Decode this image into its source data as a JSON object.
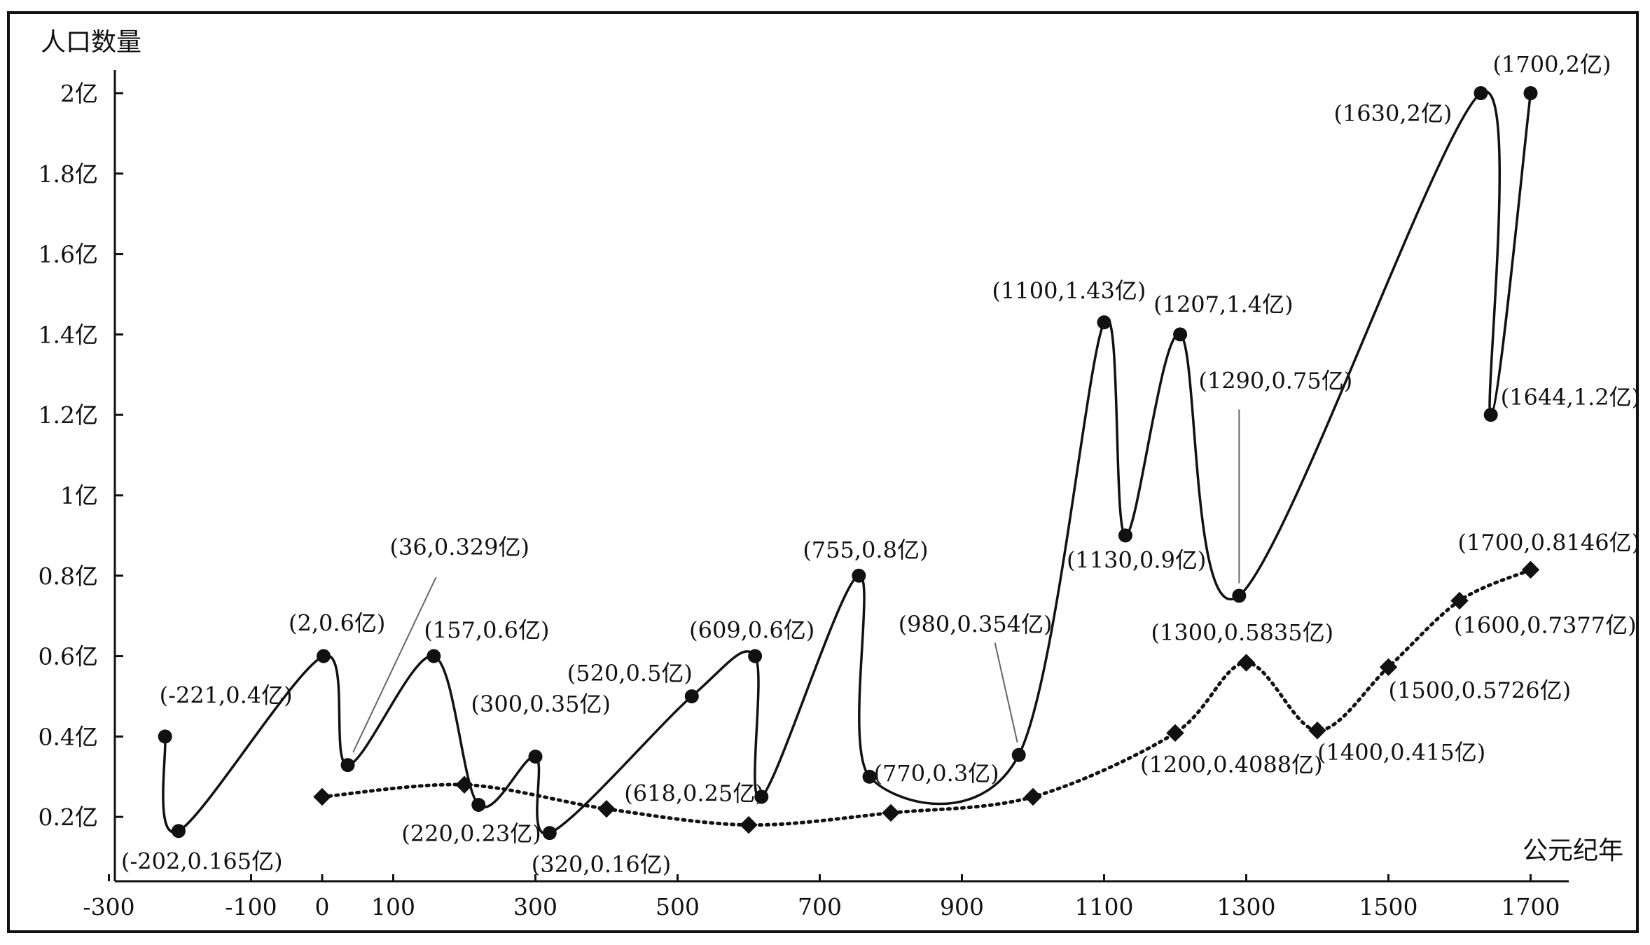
{
  "chart_data": {
    "type": "line",
    "ylabel": "人口数量",
    "xlabel": "公元纪年",
    "xlim": [
      -300,
      1800
    ],
    "ylim": [
      0.04,
      2.0
    ],
    "x_ticks": [
      {
        "value": -300,
        "label": "-300"
      },
      {
        "value": -100,
        "label": "-100"
      },
      {
        "value": 0,
        "label": "0"
      },
      {
        "value": 100,
        "label": "100"
      },
      {
        "value": 300,
        "label": "300"
      },
      {
        "value": 500,
        "label": "500"
      },
      {
        "value": 700,
        "label": "700"
      },
      {
        "value": 900,
        "label": "900"
      },
      {
        "value": 1100,
        "label": "1100"
      },
      {
        "value": 1300,
        "label": "1300"
      },
      {
        "value": 1500,
        "label": "1500"
      },
      {
        "value": 1700,
        "label": "1700"
      }
    ],
    "y_ticks": [
      {
        "value": 0.2,
        "label": "0.2亿"
      },
      {
        "value": 0.4,
        "label": "0.4亿"
      },
      {
        "value": 0.6,
        "label": "0.6亿"
      },
      {
        "value": 0.8,
        "label": "0.8亿"
      },
      {
        "value": 1.0,
        "label": "1亿"
      },
      {
        "value": 1.2,
        "label": "1.2亿"
      },
      {
        "value": 1.4,
        "label": "1.4亿"
      },
      {
        "value": 1.6,
        "label": "1.6亿"
      },
      {
        "value": 1.8,
        "label": "1.8亿"
      },
      {
        "value": 2.0,
        "label": "2亿"
      }
    ],
    "series": [
      {
        "marker": "circle",
        "line_style": "solid",
        "points": [
          {
            "x": -221,
            "y": 0.4,
            "label": "(-221,0.4亿)"
          },
          {
            "x": -202,
            "y": 0.165,
            "label": "(-202,0.165亿)"
          },
          {
            "x": 2,
            "y": 0.6,
            "label": "(2,0.6亿)"
          },
          {
            "x": 36,
            "y": 0.329,
            "label": "(36,0.329亿)"
          },
          {
            "x": 157,
            "y": 0.6,
            "label": "(157,0.6亿)"
          },
          {
            "x": 220,
            "y": 0.23,
            "label": "(220,0.23亿)"
          },
          {
            "x": 300,
            "y": 0.35,
            "label": "(300,0.35亿)"
          },
          {
            "x": 320,
            "y": 0.16,
            "label": "(320,0.16亿)"
          },
          {
            "x": 520,
            "y": 0.5,
            "label": "(520,0.5亿)"
          },
          {
            "x": 609,
            "y": 0.6,
            "label": "(609,0.6亿)"
          },
          {
            "x": 618,
            "y": 0.25,
            "label": "(618,0.25亿)"
          },
          {
            "x": 755,
            "y": 0.8,
            "label": "(755,0.8亿)"
          },
          {
            "x": 770,
            "y": 0.3,
            "label": "(770,0.3亿)"
          },
          {
            "x": 980,
            "y": 0.354,
            "label": "(980,0.354亿)"
          },
          {
            "x": 1100,
            "y": 1.43,
            "label": "(1100,1.43亿)"
          },
          {
            "x": 1130,
            "y": 0.9,
            "label": "(1130,0.9亿)"
          },
          {
            "x": 1207,
            "y": 1.4,
            "label": "(1207,1.4亿)"
          },
          {
            "x": 1290,
            "y": 0.75,
            "label": "(1290,0.75亿)"
          },
          {
            "x": 1630,
            "y": 2.0,
            "label": "(1630,2亿)"
          },
          {
            "x": 1644,
            "y": 1.2,
            "label": "(1644,1.2亿)"
          },
          {
            "x": 1700,
            "y": 2.0,
            "label": "(1700,2亿)"
          }
        ]
      },
      {
        "marker": "diamond",
        "line_style": "dotted",
        "points": [
          {
            "x": 0,
            "y": 0.25
          },
          {
            "x": 200,
            "y": 0.28
          },
          {
            "x": 400,
            "y": 0.22
          },
          {
            "x": 600,
            "y": 0.18
          },
          {
            "x": 800,
            "y": 0.21
          },
          {
            "x": 1000,
            "y": 0.25
          },
          {
            "x": 1200,
            "y": 0.4088,
            "label": "(1200,0.4088亿)"
          },
          {
            "x": 1300,
            "y": 0.5835,
            "label": "(1300,0.5835亿)"
          },
          {
            "x": 1400,
            "y": 0.415,
            "label": "(1400,0.415亿)"
          },
          {
            "x": 1500,
            "y": 0.5726,
            "label": "(1500,0.5726亿)"
          },
          {
            "x": 1600,
            "y": 0.7377,
            "label": "(1600,0.7377亿)"
          },
          {
            "x": 1700,
            "y": 0.8146,
            "label": "(1700,0.8146亿)"
          }
        ]
      }
    ]
  }
}
